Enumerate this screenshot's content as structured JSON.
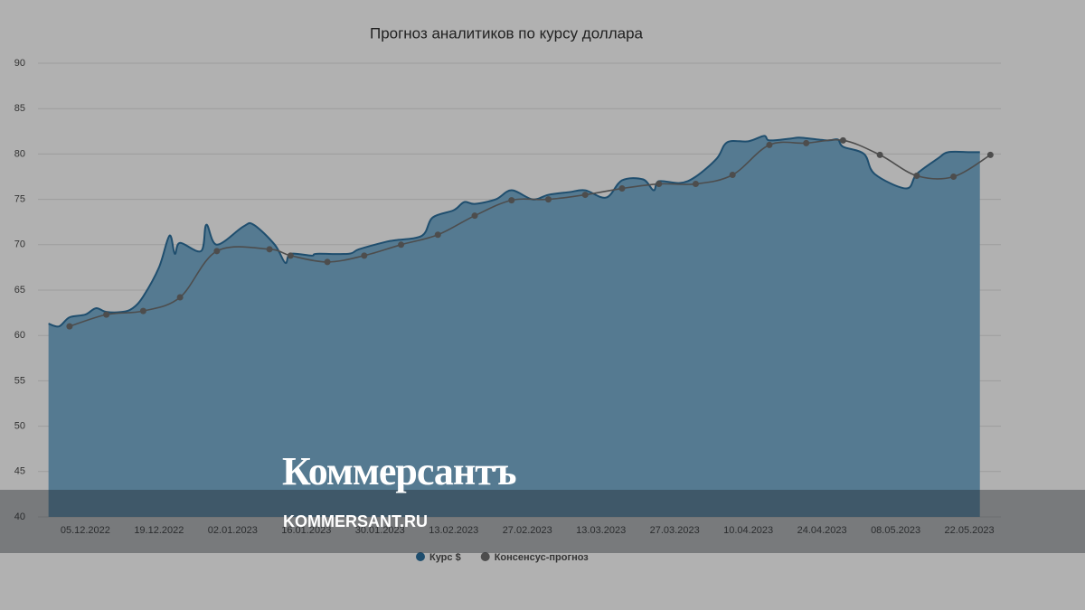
{
  "chart_data": {
    "type": "area-line",
    "title": "Прогноз аналитиков по курсу доллара",
    "series": [
      {
        "name": "Курс $",
        "color": "#1f4e6e",
        "fill": "#557a91",
        "x": [
          "28.11.2022",
          "30.11.2022",
          "02.12.2022",
          "05.12.2022",
          "07.12.2022",
          "09.12.2022",
          "12.12.2022",
          "14.12.2022",
          "16.12.2022",
          "19.12.2022",
          "21.12.2022",
          "22.12.2022",
          "23.12.2022",
          "27.12.2022",
          "28.12.2022",
          "30.12.2022",
          "04.01.2023",
          "06.01.2023",
          "10.01.2023",
          "12.01.2023",
          "13.01.2023",
          "17.01.2023",
          "18.01.2023",
          "24.01.2023",
          "26.01.2023",
          "31.01.2023",
          "02.02.2023",
          "07.02.2023",
          "09.02.2023",
          "13.02.2023",
          "15.02.2023",
          "17.02.2023",
          "21.02.2023",
          "24.02.2023",
          "28.02.2023",
          "03.03.2023",
          "07.03.2023",
          "10.03.2023",
          "14.03.2023",
          "17.03.2023",
          "21.03.2023",
          "23.03.2023",
          "24.03.2023",
          "28.03.2023",
          "31.03.2023",
          "04.04.2023",
          "06.04.2023",
          "10.04.2023",
          "13.04.2023",
          "14.04.2023",
          "18.04.2023",
          "20.04.2023",
          "25.04.2023",
          "27.04.2023",
          "28.04.2023",
          "02.05.2023",
          "04.05.2023",
          "10.05.2023",
          "12.05.2023",
          "16.05.2023",
          "18.05.2023",
          "22.05.2023",
          "24.05.2023"
        ],
        "values": [
          61.3,
          61.0,
          62.0,
          62.3,
          63.0,
          62.6,
          62.6,
          63.0,
          64.3,
          67.5,
          71.0,
          69.0,
          70.2,
          69.3,
          72.2,
          70.0,
          72.0,
          72.2,
          70.0,
          68.0,
          69.0,
          68.8,
          69.0,
          69.0,
          69.5,
          70.3,
          70.5,
          71.0,
          73.0,
          73.8,
          74.7,
          74.5,
          75.0,
          76.0,
          75.0,
          75.5,
          75.8,
          76.0,
          75.2,
          77.1,
          77.2,
          76.0,
          77.0,
          76.8,
          77.5,
          79.5,
          81.3,
          81.4,
          82.0,
          81.5,
          81.7,
          81.8,
          81.5,
          81.6,
          80.8,
          80.0,
          77.8,
          76.2,
          77.8,
          79.5,
          80.2,
          80.2,
          80.2
        ]
      },
      {
        "name": "Консенсус-прогноз",
        "color": "#4d4d4d",
        "x": [
          "02.12.2022",
          "09.12.2022",
          "16.12.2022",
          "23.12.2022",
          "30.12.2022",
          "09.01.2023",
          "13.01.2023",
          "20.01.2023",
          "27.01.2023",
          "03.02.2023",
          "10.02.2023",
          "17.02.2023",
          "24.02.2023",
          "03.03.2023",
          "10.03.2023",
          "17.03.2023",
          "24.03.2023",
          "31.03.2023",
          "07.04.2023",
          "14.04.2023",
          "21.04.2023",
          "28.04.2023",
          "05.05.2023",
          "12.05.2023",
          "19.05.2023",
          "26.05.2023"
        ],
        "values": [
          61.0,
          62.3,
          62.7,
          64.2,
          69.3,
          69.5,
          68.8,
          68.1,
          68.8,
          70.0,
          71.1,
          73.2,
          74.9,
          75.0,
          75.5,
          76.2,
          76.7,
          76.7,
          77.7,
          81.0,
          81.2,
          81.5,
          79.9,
          77.6,
          77.5,
          79.9
        ]
      }
    ],
    "xlim": [
      "26.11.2022",
      "28.05.2023"
    ],
    "xticks": [
      "05.12.2022",
      "19.12.2022",
      "02.01.2023",
      "16.01.2023",
      "30.01.2023",
      "13.02.2023",
      "27.02.2023",
      "13.03.2023",
      "27.03.2023",
      "10.04.2023",
      "24.04.2023",
      "08.05.2023",
      "22.05.2023"
    ],
    "ylim": [
      40,
      90
    ],
    "yticks": [
      40,
      45,
      50,
      55,
      60,
      65,
      70,
      75,
      80,
      85,
      90
    ],
    "grid": true
  },
  "watermark": {
    "logo": "Коммерсантъ",
    "site": "KOMMERSANT.RU"
  }
}
